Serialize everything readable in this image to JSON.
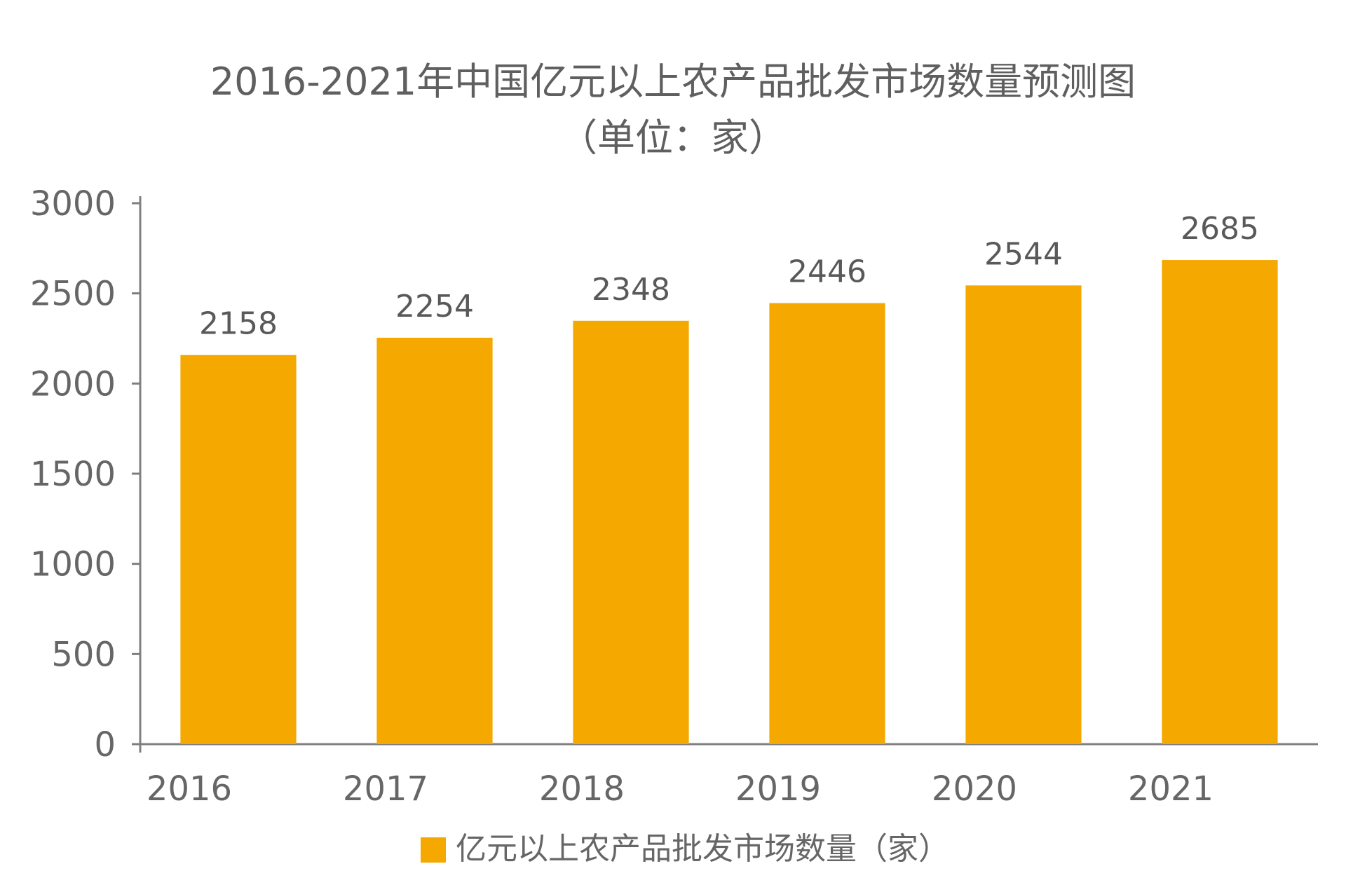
{
  "chart_data": {
    "type": "bar",
    "title": "2016-2021年中国亿元以上农产品批发市场数量预测图",
    "subtitle": "（单位：家）",
    "xlabel": "",
    "ylabel": "",
    "categories": [
      "2016",
      "2017",
      "2018",
      "2019",
      "2020",
      "2021"
    ],
    "series": [
      {
        "name": "亿元以上农产品批发市场数量（家）",
        "values": [
          2158,
          2254,
          2348,
          2446,
          2544,
          2685
        ],
        "color": "#F5A800"
      }
    ],
    "ylim": [
      0,
      3000
    ],
    "yticks": [
      "0",
      "500",
      "1000",
      "1500",
      "2000",
      "2500",
      "3000"
    ],
    "data_labels": [
      "2158",
      "2254",
      "2348",
      "2446",
      "2544",
      "2685"
    ],
    "grid": false,
    "legend_position": "bottom-center"
  }
}
